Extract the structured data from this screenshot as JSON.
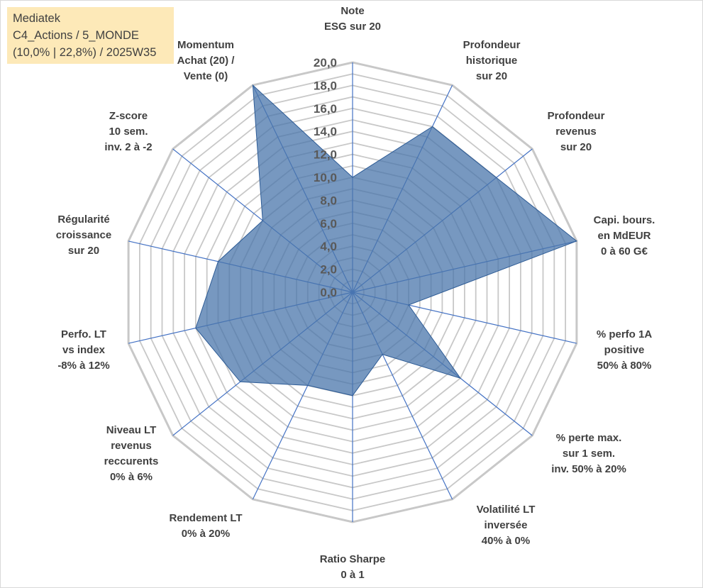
{
  "title": {
    "line1": "Mediatek",
    "line2": "C4_Actions / 5_MONDE",
    "line3": "(10,0% | 22,8%) / 2025W35"
  },
  "chart_data": {
    "type": "radar",
    "r_range": [
      0,
      20
    ],
    "r_tick_labels": [
      "0,0",
      "2,0",
      "4,0",
      "6,0",
      "8,0",
      "10,0",
      "12,0",
      "14,0",
      "16,0",
      "18,0",
      "20,0"
    ],
    "gridline_step": 1,
    "axes": [
      {
        "label_lines": [
          "Note",
          "ESG sur 20"
        ],
        "value": 10.0
      },
      {
        "label_lines": [
          "Profondeur",
          "historique",
          "sur 20"
        ],
        "value": 16.0
      },
      {
        "label_lines": [
          "Profondeur",
          "revenus",
          "sur 20"
        ],
        "value": 16.0
      },
      {
        "label_lines": [
          "Capi. bours.",
          "en MdEUR",
          "0 à 60 G€"
        ],
        "value": 20.0
      },
      {
        "label_lines": [
          "% perfo 1A",
          "positive",
          "50% à 80%"
        ],
        "value": 5.0
      },
      {
        "label_lines": [
          "% perte max.",
          "sur 1 sem.",
          "inv. 50% à 20%"
        ],
        "value": 12.0
      },
      {
        "label_lines": [
          "Volatilité LT",
          "inversée",
          "40% à 0%"
        ],
        "value": 6.0
      },
      {
        "label_lines": [
          "Ratio Sharpe",
          "0 à 1"
        ],
        "value": 9.0
      },
      {
        "label_lines": [
          "Rendement LT",
          "0% à 20%"
        ],
        "value": 9.0
      },
      {
        "label_lines": [
          "Niveau LT",
          "revenus",
          "reccurents",
          "0% à 6%"
        ],
        "value": 12.5
      },
      {
        "label_lines": [
          "Perfo. LT",
          "vs index",
          "-8% à 12%"
        ],
        "value": 14.0
      },
      {
        "label_lines": [
          "Régularité",
          "croissance",
          "sur 20"
        ],
        "value": 12.0
      },
      {
        "label_lines": [
          "Z-score",
          "10 sem.",
          "inv. 2 à -2"
        ],
        "value": 10.0
      },
      {
        "label_lines": [
          "Momentum",
          "Achat (20) /",
          "Vente (0)"
        ],
        "value": 20.0
      }
    ],
    "series": [
      {
        "fill": "#4a76ab",
        "fill_opacity": 0.75,
        "stroke": "#2e5c96"
      }
    ],
    "grid_color": "#c8c8c8",
    "spoke_color": "#4472c4",
    "legend": "none"
  }
}
